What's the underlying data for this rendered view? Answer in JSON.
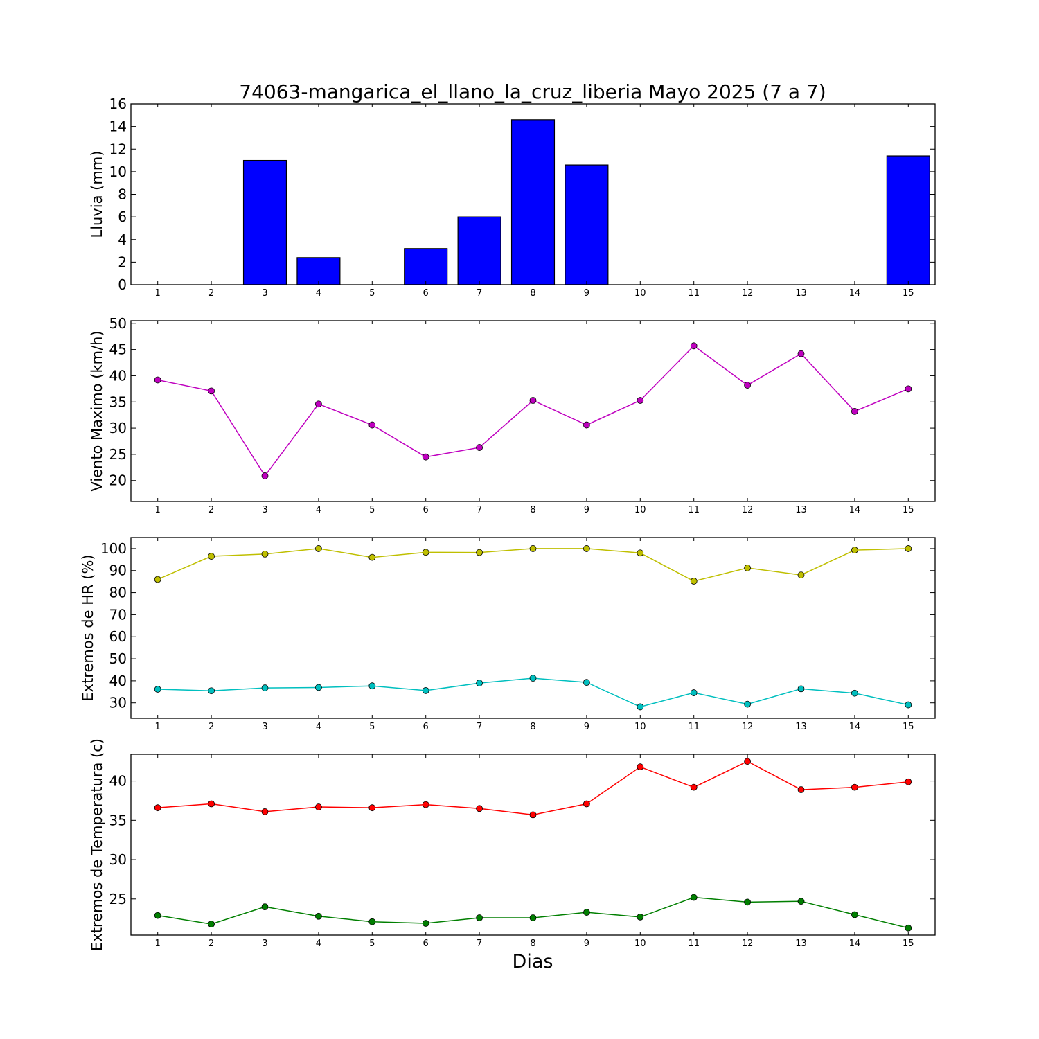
{
  "figure": {
    "title": "74063-mangarica_el_llano_la_cruz_liberia Mayo 2025  (7 a 7)",
    "xlabel": "Dias"
  },
  "chart_data": [
    {
      "type": "bar",
      "ylabel": "Lluvia (mm)",
      "categories": [
        1,
        2,
        3,
        4,
        5,
        6,
        7,
        8,
        9,
        10,
        11,
        12,
        13,
        14,
        15
      ],
      "xlim": [
        0.5,
        15.5
      ],
      "ylim": [
        0,
        16
      ],
      "yticks": [
        0,
        2,
        4,
        6,
        8,
        10,
        12,
        14,
        16
      ],
      "grid": false,
      "series": [
        {
          "color": "#0000ff",
          "values": [
            0,
            0,
            11,
            2.4,
            0,
            3.2,
            6,
            14.6,
            10.6,
            0,
            0,
            0,
            0,
            0,
            11.4
          ]
        }
      ]
    },
    {
      "type": "line",
      "ylabel": "Viento Maximo (km/h)",
      "x": [
        1,
        2,
        3,
        4,
        5,
        6,
        7,
        8,
        9,
        10,
        11,
        12,
        13,
        14,
        15
      ],
      "xlim": [
        0.5,
        15.5
      ],
      "ylim": [
        16,
        50.5
      ],
      "yticks": [
        20,
        25,
        30,
        35,
        40,
        45,
        50
      ],
      "grid": false,
      "series": [
        {
          "color": "#bf00bf",
          "values": [
            39.2,
            37.1,
            20.9,
            34.6,
            30.6,
            24.5,
            26.3,
            35.3,
            30.6,
            35.3,
            45.7,
            38.2,
            44.2,
            33.2,
            37.5
          ]
        }
      ]
    },
    {
      "type": "line",
      "ylabel": "Extremos de HR (%)",
      "x": [
        1,
        2,
        3,
        4,
        5,
        6,
        7,
        8,
        9,
        10,
        11,
        12,
        13,
        14,
        15
      ],
      "xlim": [
        0.5,
        15.5
      ],
      "ylim": [
        23,
        105
      ],
      "yticks": [
        30,
        40,
        50,
        60,
        70,
        80,
        90,
        100
      ],
      "grid": false,
      "series": [
        {
          "color": "#bfbf00",
          "values": [
            86,
            96.5,
            97.5,
            100,
            96,
            98.3,
            98.2,
            100,
            100,
            98,
            85.2,
            91.2,
            88,
            99.3,
            100
          ]
        },
        {
          "color": "#00bfbf",
          "values": [
            36.2,
            35.5,
            36.8,
            37,
            37.7,
            35.6,
            39,
            41.2,
            39.3,
            28.2,
            34.6,
            29.4,
            36.4,
            34.4,
            29.1
          ]
        }
      ]
    },
    {
      "type": "line",
      "ylabel": "Extremos de Temperatura (c)",
      "x": [
        1,
        2,
        3,
        4,
        5,
        6,
        7,
        8,
        9,
        10,
        11,
        12,
        13,
        14,
        15
      ],
      "xlim": [
        0.5,
        15.5
      ],
      "ylim": [
        20.4,
        43.4
      ],
      "yticks": [
        25,
        30,
        35,
        40
      ],
      "grid": false,
      "series": [
        {
          "color": "#ff0000",
          "values": [
            36.6,
            37.1,
            36.1,
            36.7,
            36.6,
            37,
            36.5,
            35.7,
            37.1,
            41.8,
            39.2,
            42.5,
            38.9,
            39.2,
            39.9
          ]
        },
        {
          "color": "#007f00",
          "values": [
            22.9,
            21.8,
            24,
            22.8,
            22.1,
            21.9,
            22.6,
            22.6,
            23.3,
            22.7,
            25.2,
            24.6,
            24.7,
            23,
            21.3
          ]
        }
      ]
    }
  ]
}
